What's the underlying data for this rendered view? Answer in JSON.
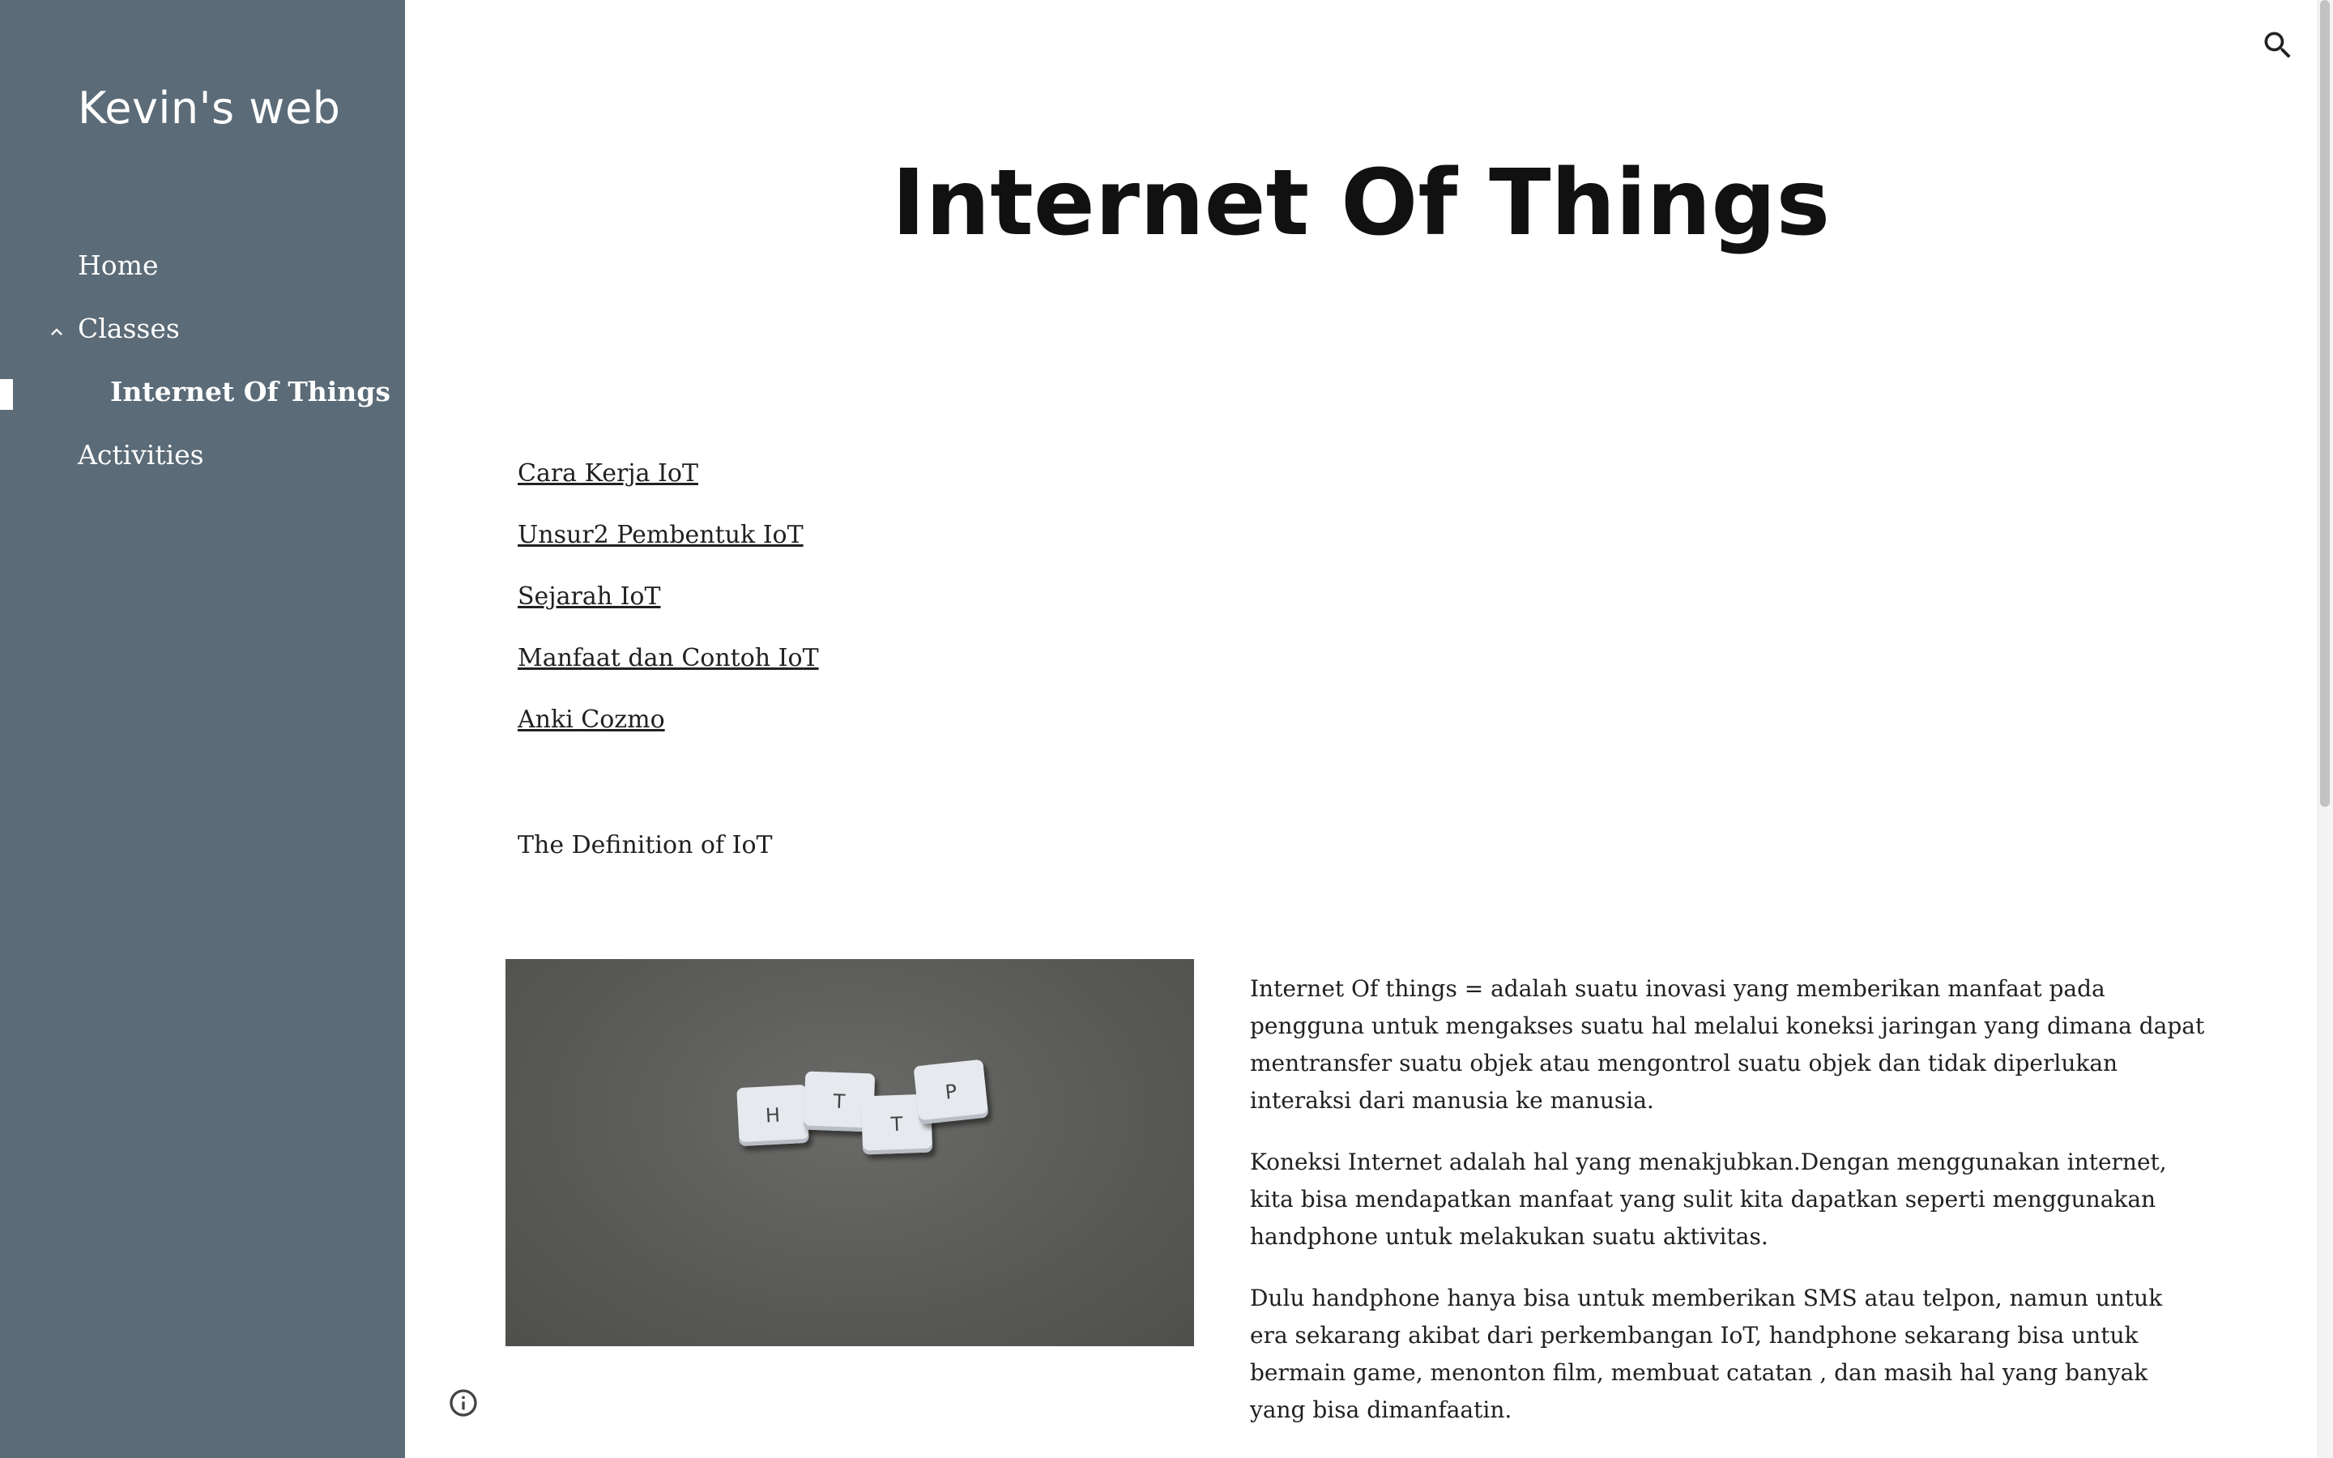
{
  "sidebar": {
    "site_title": "Kevin's web",
    "items": [
      {
        "label": "Home"
      },
      {
        "label": "Classes",
        "expanded": true
      },
      {
        "label": "Internet Of Things",
        "active": true
      },
      {
        "label": "Activities"
      }
    ],
    "background_color": "#5b6b77"
  },
  "header": {
    "search_icon": "search-icon"
  },
  "main": {
    "page_title": "Internet Of Things",
    "links": [
      {
        "label": "Cara Kerja IoT"
      },
      {
        "label": "Unsur2 Pembentuk IoT"
      },
      {
        "label": "Sejarah IoT"
      },
      {
        "label": "Manfaat dan Contoh IoT"
      },
      {
        "label": "Anki Cozmo"
      }
    ],
    "definition_label": "The Definition of IoT",
    "image": {
      "tiles": [
        "H",
        "T",
        "T",
        "P"
      ]
    },
    "paragraphs": [
      "Internet Of things = adalah suatu inovasi yang memberikan manfaat pada pengguna untuk mengakses suatu hal melalui koneksi jaringan yang dimana dapat mentransfer suatu objek atau mengontrol suatu objek dan tidak diperlukan interaksi dari manusia ke manusia.",
      "Koneksi Internet adalah hal yang menakjubkan.Dengan menggunakan internet, kita bisa mendapatkan manfaat yang sulit kita dapatkan seperti menggunakan handphone untuk melakukan suatu aktivitas.",
      "Dulu handphone hanya bisa untuk memberikan SMS atau telpon, namun untuk era sekarang akibat dari perkembangan IoT, handphone sekarang bisa untuk bermain game, menonton film, membuat catatan , dan masih hal yang banyak yang bisa dimanfaatin."
    ]
  },
  "footer": {
    "info_icon": "info-icon"
  }
}
